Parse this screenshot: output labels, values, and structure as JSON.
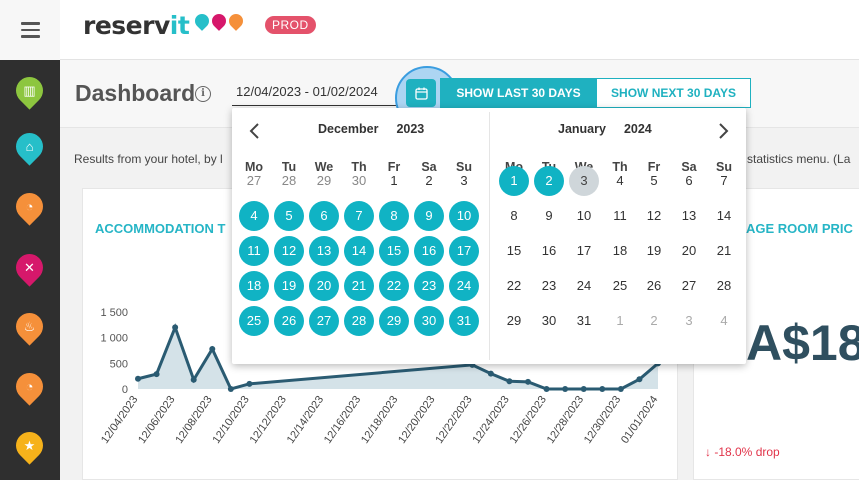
{
  "header": {
    "logo_text_main": "reserv",
    "logo_text_accent": "it",
    "env_badge": "PROD"
  },
  "page": {
    "title": "Dashboard",
    "date_range_value": "12/04/2023 - 01/02/2024",
    "btn_last_30": "SHOW LAST 30 DAYS",
    "btn_next_30": "SHOW NEXT 30 DAYS",
    "results_text": "Results from your hotel, by l",
    "results_tail": "statistics menu. (La"
  },
  "cards": {
    "accommodation_title": "ACCOMMODATION T",
    "avg_room_title": "AGE ROOM PRIC",
    "avg_room_value": "A$18",
    "avg_room_drop": "↓ -18.0% drop"
  },
  "chart_data": {
    "type": "area",
    "y_tick_labels": [
      "0",
      "500",
      "1 000",
      "1 500"
    ],
    "ylim": [
      0,
      1500
    ],
    "x_tick_labels": [
      "12/04/2023",
      "12/06/2023",
      "12/08/2023",
      "12/10/2023",
      "12/12/2023",
      "12/14/2023",
      "12/16/2023",
      "12/18/2023",
      "12/20/2023",
      "12/22/2023",
      "12/24/2023",
      "12/26/2023",
      "12/28/2023",
      "12/30/2023",
      "01/01/2024"
    ],
    "x": [
      "12/04/2023",
      "12/05/2023",
      "12/06/2023",
      "12/07/2023",
      "12/08/2023",
      "12/09/2023",
      "12/10/2023",
      "12/22/2023",
      "12/23/2023",
      "12/24/2023",
      "12/25/2023",
      "12/26/2023",
      "12/27/2023",
      "12/28/2023",
      "12/29/2023",
      "12/30/2023",
      "12/31/2023",
      "01/01/2024"
    ],
    "values": [
      200,
      290,
      1200,
      180,
      780,
      0,
      100,
      470,
      300,
      150,
      140,
      0,
      0,
      0,
      0,
      0,
      190,
      500
    ],
    "fill_color": "#d4e2e8",
    "line_color": "#2a5b72"
  },
  "datepicker": {
    "weekdays": [
      "Mo",
      "Tu",
      "We",
      "Th",
      "Fr",
      "Sa",
      "Su"
    ],
    "left": {
      "month": "December",
      "year": "2023",
      "weeks": [
        [
          [
            "27",
            "muted"
          ],
          [
            "28",
            "muted"
          ],
          [
            "29",
            "muted"
          ],
          [
            "30",
            "muted"
          ],
          [
            "1",
            ""
          ],
          [
            "2",
            ""
          ],
          [
            "3",
            ""
          ]
        ],
        [
          [
            "4",
            "sel"
          ],
          [
            "5",
            "sel"
          ],
          [
            "6",
            "sel"
          ],
          [
            "7",
            "sel"
          ],
          [
            "8",
            "sel"
          ],
          [
            "9",
            "sel"
          ],
          [
            "10",
            "sel"
          ]
        ],
        [
          [
            "11",
            "sel"
          ],
          [
            "12",
            "sel"
          ],
          [
            "13",
            "sel"
          ],
          [
            "14",
            "sel"
          ],
          [
            "15",
            "sel"
          ],
          [
            "16",
            "sel"
          ],
          [
            "17",
            "sel"
          ]
        ],
        [
          [
            "18",
            "sel"
          ],
          [
            "19",
            "sel"
          ],
          [
            "20",
            "sel"
          ],
          [
            "21",
            "sel"
          ],
          [
            "22",
            "sel"
          ],
          [
            "23",
            "sel"
          ],
          [
            "24",
            "sel"
          ]
        ],
        [
          [
            "25",
            "sel"
          ],
          [
            "26",
            "sel"
          ],
          [
            "27",
            "sel"
          ],
          [
            "28",
            "sel"
          ],
          [
            "29",
            "sel"
          ],
          [
            "30",
            "sel"
          ],
          [
            "31",
            "sel"
          ]
        ]
      ]
    },
    "right": {
      "month": "January",
      "year": "2024",
      "weeks": [
        [
          [
            "1",
            "sel"
          ],
          [
            "2",
            "sel"
          ],
          [
            "3",
            "today"
          ],
          [
            "4",
            ""
          ],
          [
            "5",
            ""
          ],
          [
            "6",
            ""
          ],
          [
            "7",
            ""
          ]
        ],
        [
          [
            "8",
            ""
          ],
          [
            "9",
            ""
          ],
          [
            "10",
            ""
          ],
          [
            "11",
            ""
          ],
          [
            "12",
            ""
          ],
          [
            "13",
            ""
          ],
          [
            "14",
            ""
          ]
        ],
        [
          [
            "15",
            ""
          ],
          [
            "16",
            ""
          ],
          [
            "17",
            ""
          ],
          [
            "18",
            ""
          ],
          [
            "19",
            ""
          ],
          [
            "20",
            ""
          ],
          [
            "21",
            ""
          ]
        ],
        [
          [
            "22",
            ""
          ],
          [
            "23",
            ""
          ],
          [
            "24",
            ""
          ],
          [
            "25",
            ""
          ],
          [
            "26",
            ""
          ],
          [
            "27",
            ""
          ],
          [
            "28",
            ""
          ]
        ],
        [
          [
            "29",
            ""
          ],
          [
            "30",
            ""
          ],
          [
            "31",
            ""
          ],
          [
            "1",
            "gray"
          ],
          [
            "2",
            "gray"
          ],
          [
            "3",
            "gray"
          ],
          [
            "4",
            "gray"
          ]
        ]
      ]
    }
  },
  "sidebar": {
    "items": [
      {
        "icon": "building-icon",
        "color": "#8dc63f",
        "glyph": "▥"
      },
      {
        "icon": "bed-icon",
        "color": "#26bfc9",
        "glyph": "⌂"
      },
      {
        "icon": "clock-icon",
        "color": "#f5903a",
        "glyph": "◔"
      },
      {
        "icon": "restaurant-icon",
        "color": "#d6186b",
        "glyph": "✕"
      },
      {
        "icon": "spa-icon",
        "color": "#f5903a",
        "glyph": "♨"
      },
      {
        "icon": "clock-icon",
        "color": "#f5903a",
        "glyph": "◔"
      },
      {
        "icon": "star-icon",
        "color": "#f6b21b",
        "glyph": "★"
      }
    ]
  }
}
